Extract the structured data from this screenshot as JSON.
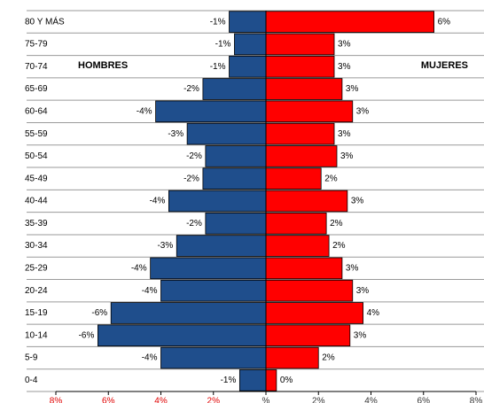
{
  "chart_data": {
    "type": "pyramid",
    "categories": [
      "80 Y MÁS",
      "75-79",
      "70-74",
      "65-69",
      "60-64",
      "55-59",
      "50-54",
      "45-49",
      "40-44",
      "35-39",
      "30-34",
      "25-29",
      "20-24",
      "15-19",
      "10-14",
      "5-9",
      "0-4"
    ],
    "series": [
      {
        "name": "HOMBRES",
        "color": "#1f4e8c",
        "values": [
          -1.4,
          -1.2,
          -1.4,
          -2.4,
          -4.2,
          -3.0,
          -2.3,
          -2.4,
          -3.7,
          -2.3,
          -3.4,
          -4.4,
          -4.0,
          -5.9,
          -6.4,
          -4.0,
          -1.0
        ],
        "value_labels": [
          "-1%",
          "-1%",
          "-1%",
          "-2%",
          "-4%",
          "-3%",
          "-2%",
          "-2%",
          "-4%",
          "-2%",
          "-3%",
          "-4%",
          "-4%",
          "-6%",
          "-6%",
          "-4%",
          "-1%"
        ]
      },
      {
        "name": "MUJERES",
        "color": "#ff0000",
        "values": [
          6.4,
          2.6,
          2.6,
          2.9,
          3.3,
          2.6,
          2.7,
          2.1,
          3.1,
          2.3,
          2.4,
          2.9,
          3.3,
          3.7,
          3.2,
          2.0,
          0.4
        ],
        "value_labels": [
          "6%",
          "3%",
          "3%",
          "3%",
          "3%",
          "3%",
          "3%",
          "2%",
          "3%",
          "2%",
          "2%",
          "3%",
          "3%",
          "4%",
          "3%",
          "2%",
          "0%"
        ]
      }
    ],
    "xlim": [
      -8,
      8
    ],
    "xticks": [
      {
        "value": -8,
        "label": "8%"
      },
      {
        "value": -6,
        "label": "6%"
      },
      {
        "value": -4,
        "label": "4%"
      },
      {
        "value": -2,
        "label": "2%"
      },
      {
        "value": 0,
        "label": "%"
      },
      {
        "value": 2,
        "label": "2%"
      },
      {
        "value": 4,
        "label": "4%"
      },
      {
        "value": 6,
        "label": "6%"
      },
      {
        "value": 8,
        "label": "8%"
      }
    ]
  }
}
